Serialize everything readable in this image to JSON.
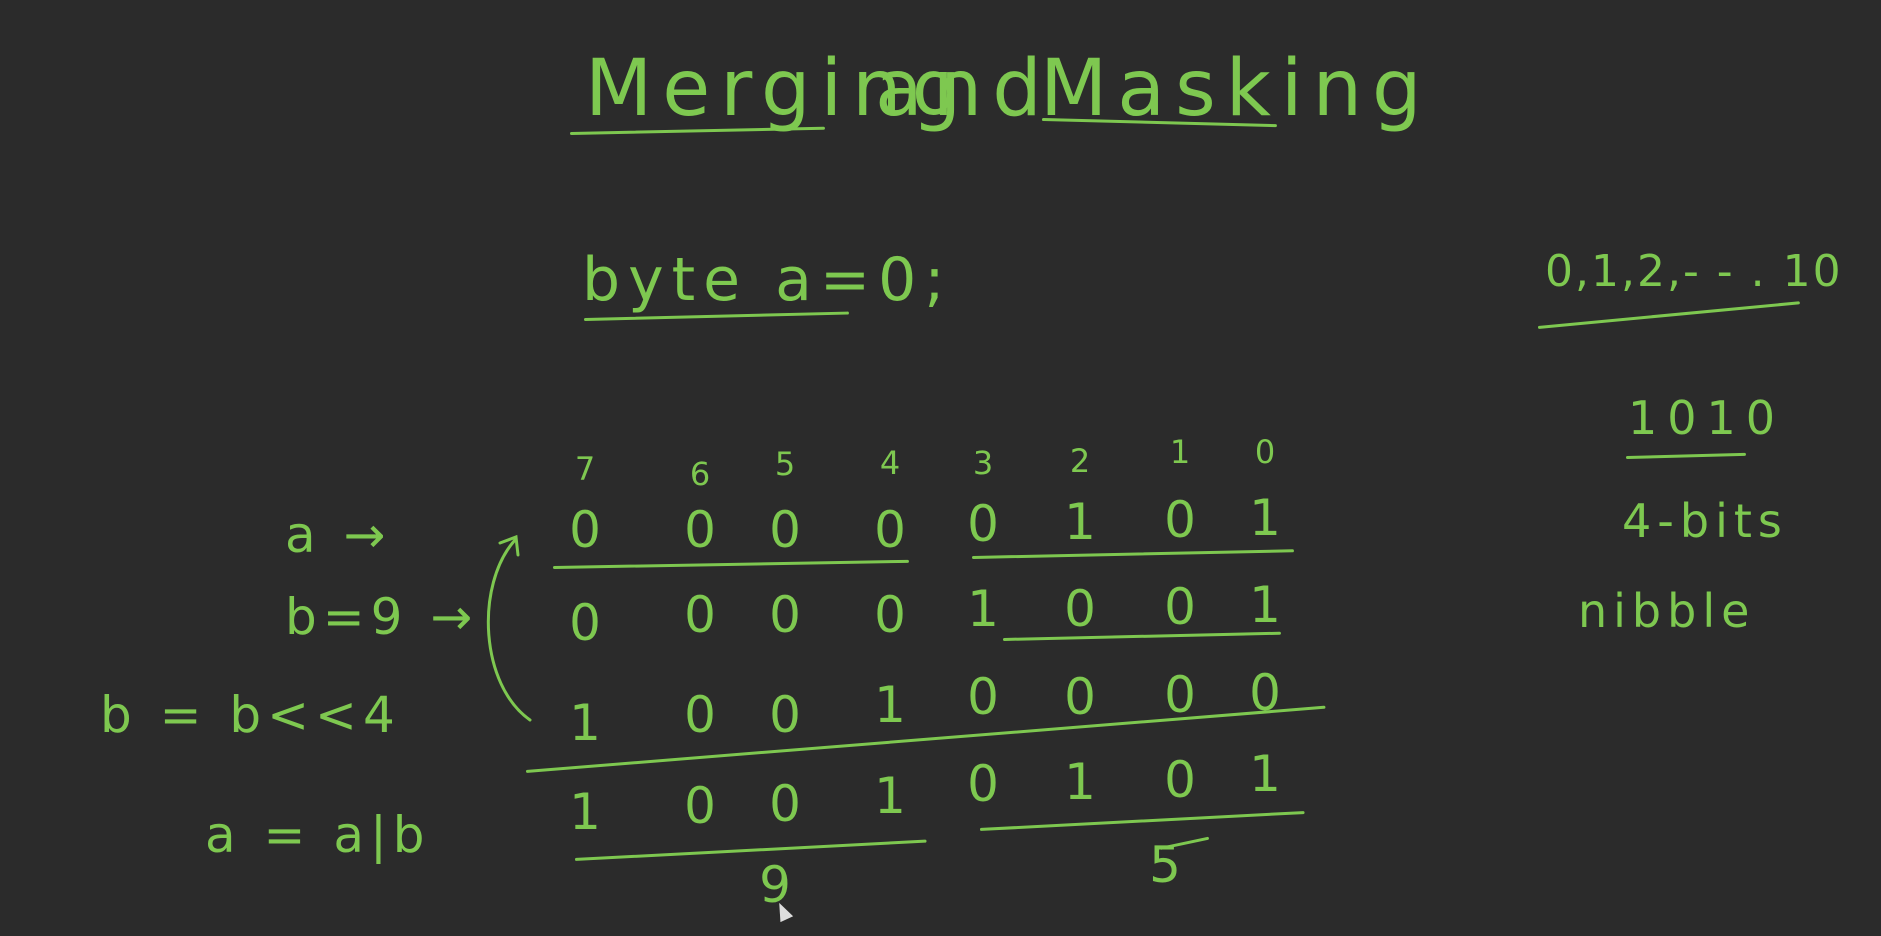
{
  "title": {
    "word1": "Merging",
    "word2": "and",
    "word3": "Masking"
  },
  "declaration": "byte a=0;",
  "bit_indices": [
    "7",
    "6",
    "5",
    "4",
    "3",
    "2",
    "1",
    "0"
  ],
  "rows": [
    {
      "label": "a →",
      "bits": [
        "0",
        "0",
        "0",
        "0",
        "0",
        "1",
        "0",
        "1"
      ]
    },
    {
      "label": "b=9 →",
      "bits": [
        "0",
        "0",
        "0",
        "0",
        "1",
        "0",
        "0",
        "1"
      ]
    },
    {
      "label": "b = b<<4",
      "bits": [
        "1",
        "0",
        "0",
        "1",
        "0",
        "0",
        "0",
        "0"
      ]
    },
    {
      "label": "a = a|b",
      "bits": [
        "1",
        "0",
        "0",
        "1",
        "0",
        "1",
        "0",
        "1"
      ]
    }
  ],
  "nibble_values": {
    "high": "9",
    "low": "5"
  },
  "side_notes": {
    "range": "0,1,2,- - . 10",
    "binary": "1010",
    "bits": "4-bits",
    "term": "nibble"
  },
  "ink_color": "#7ec850",
  "board_color": "#2b2b2b"
}
